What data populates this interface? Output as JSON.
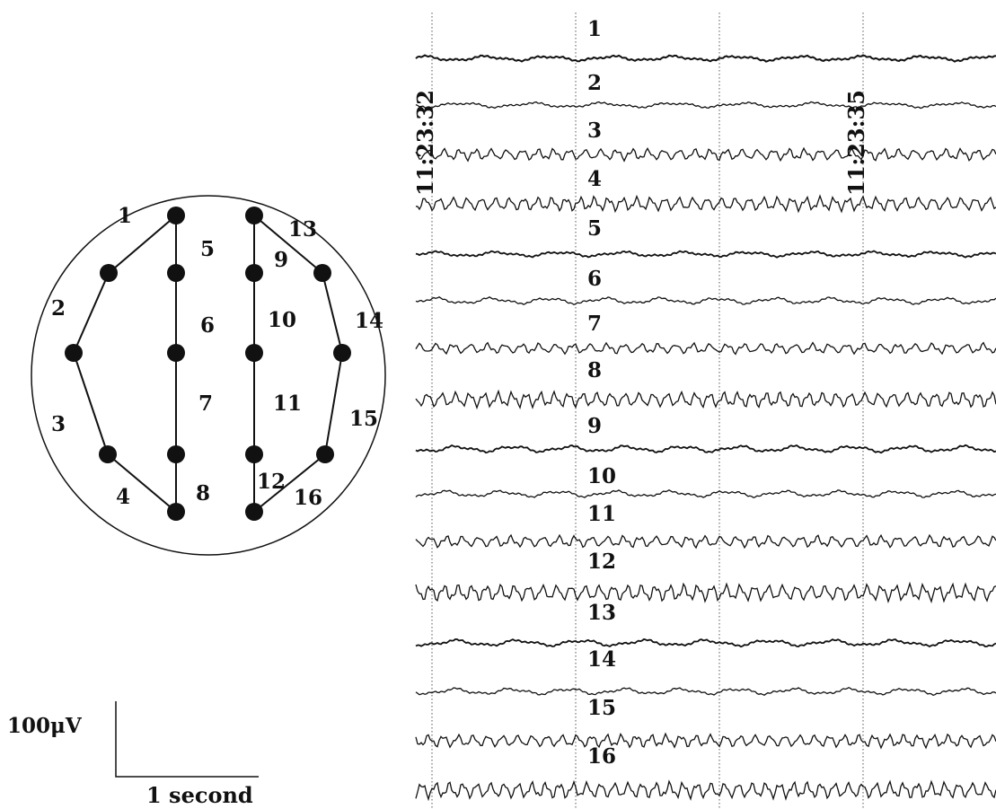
{
  "montage": {
    "channel_labels": [
      "1",
      "2",
      "3",
      "4",
      "5",
      "6",
      "7",
      "8",
      "9",
      "10",
      "11",
      "12",
      "13",
      "14",
      "15",
      "16"
    ]
  },
  "eeg": {
    "trace_labels": [
      "1",
      "2",
      "3",
      "4",
      "5",
      "6",
      "7",
      "8",
      "9",
      "10",
      "11",
      "12",
      "13",
      "14",
      "15",
      "16"
    ],
    "time_markers": [
      "11:23:32",
      "11:23:35"
    ]
  },
  "scale_bar": {
    "amplitude_label": "100μV",
    "time_label": "1 second"
  }
}
